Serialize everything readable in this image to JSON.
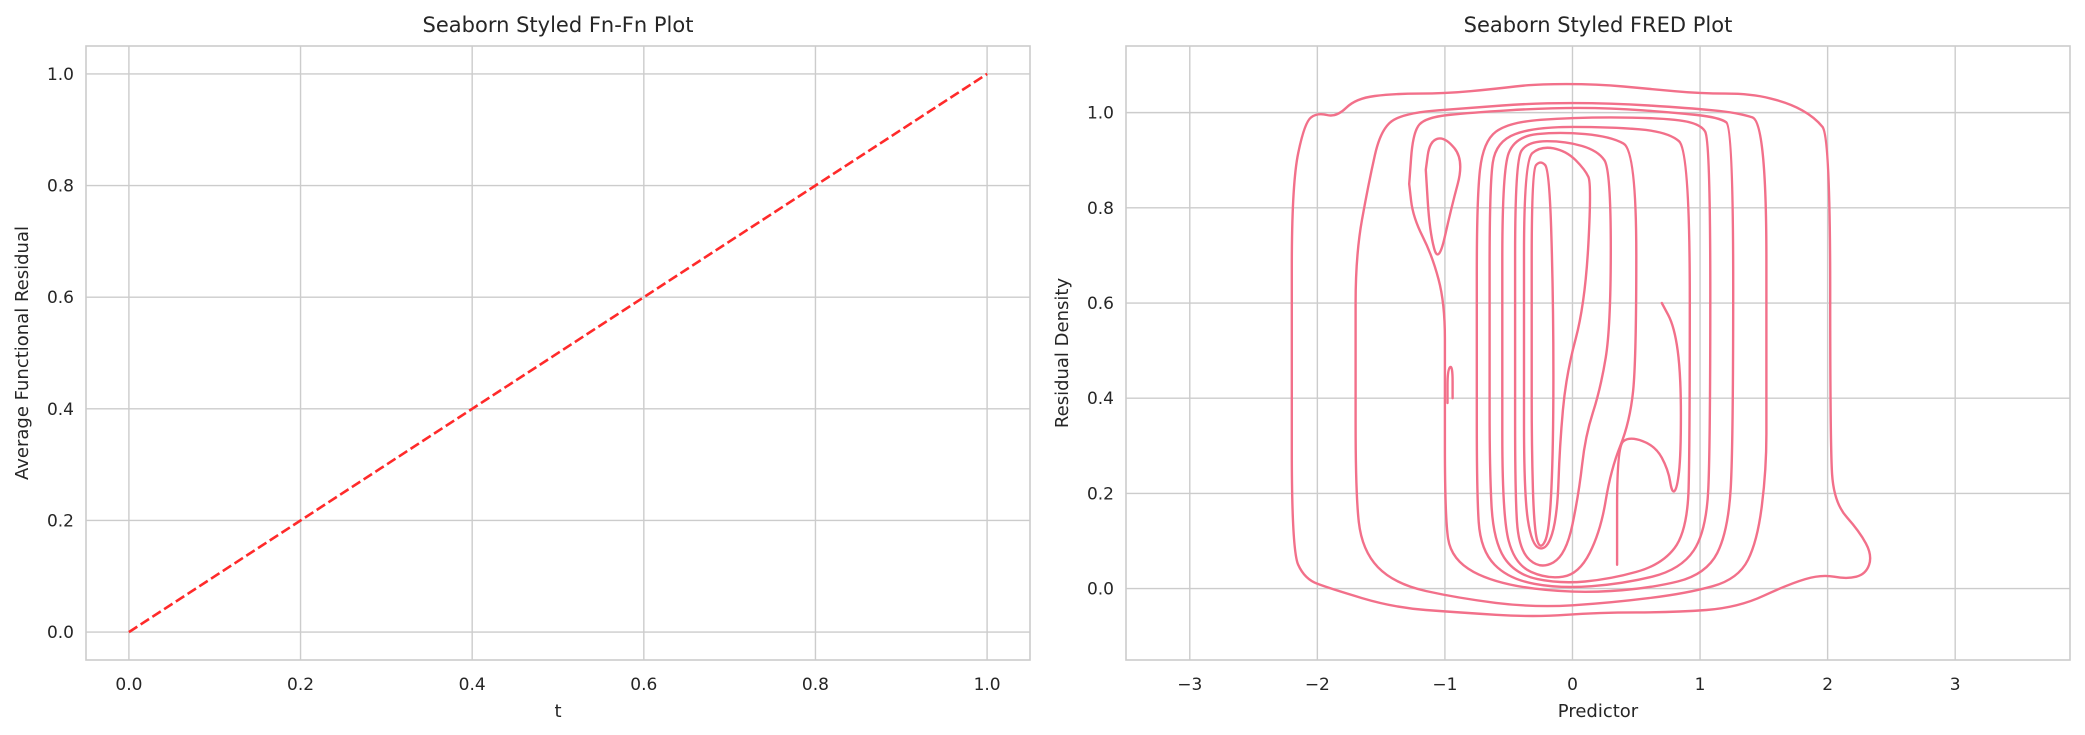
{
  "chart_data": [
    {
      "type": "line",
      "title": "Seaborn Styled Fn-Fn Plot",
      "xlabel": "t",
      "ylabel": "Average Functional Residual",
      "xlim": [
        -0.05,
        1.05
      ],
      "ylim": [
        -0.05,
        1.05
      ],
      "xticks": [
        0.0,
        0.2,
        0.4,
        0.6,
        0.8,
        1.0
      ],
      "yticks": [
        0.0,
        0.2,
        0.4,
        0.6,
        0.8,
        1.0
      ],
      "xtick_labels": [
        "0.0",
        "0.2",
        "0.4",
        "0.6",
        "0.8",
        "1.0"
      ],
      "ytick_labels": [
        "0.0",
        "0.2",
        "0.4",
        "0.6",
        "0.8",
        "1.0"
      ],
      "grid": true,
      "series": [
        {
          "x": [
            0.0,
            0.2,
            0.4,
            0.6,
            0.8,
            1.0
          ],
          "y": [
            0.0,
            0.2,
            0.4,
            0.6,
            0.8,
            1.0
          ],
          "color": "#ff2a2a",
          "style": "dashed"
        }
      ]
    },
    {
      "type": "contour",
      "title": "Seaborn Styled FRED Plot",
      "xlabel": "Predictor",
      "ylabel": "Residual Density",
      "xlim": [
        -3.5,
        3.9
      ],
      "ylim": [
        -0.15,
        1.14
      ],
      "xticks": [
        -3,
        -2,
        -1,
        0,
        1,
        2,
        3
      ],
      "yticks": [
        0.0,
        0.2,
        0.4,
        0.6,
        0.8,
        1.0
      ],
      "xtick_labels": [
        "−3",
        "−2",
        "−1",
        "0",
        "1",
        "2",
        "3"
      ],
      "ytick_labels": [
        "0.0",
        "0.2",
        "0.4",
        "0.6",
        "0.8",
        "1.0"
      ],
      "grid": true,
      "color": "#f2708a",
      "contours": [
        [
          [
            -2.2,
            0.5
          ],
          [
            -2.2,
            0.85
          ],
          [
            -2.1,
            0.98
          ],
          [
            -2.0,
            1.0
          ],
          [
            -1.85,
            0.99
          ],
          [
            -1.7,
            1.03
          ],
          [
            -1.4,
            1.04
          ],
          [
            -1.0,
            1.04
          ],
          [
            -0.6,
            1.05
          ],
          [
            -0.3,
            1.06
          ],
          [
            0.2,
            1.06
          ],
          [
            0.6,
            1.05
          ],
          [
            1.0,
            1.04
          ],
          [
            1.4,
            1.04
          ],
          [
            1.7,
            1.02
          ],
          [
            1.9,
            0.99
          ],
          [
            2.02,
            0.95
          ],
          [
            2.02,
            0.3
          ],
          [
            2.05,
            0.18
          ],
          [
            2.25,
            0.12
          ],
          [
            2.35,
            0.07
          ],
          [
            2.3,
            0.03
          ],
          [
            2.15,
            0.02
          ],
          [
            1.95,
            0.03
          ],
          [
            1.7,
            0.01
          ],
          [
            1.3,
            -0.04
          ],
          [
            0.8,
            -0.05
          ],
          [
            0.2,
            -0.05
          ],
          [
            -0.3,
            -0.06
          ],
          [
            -0.9,
            -0.05
          ],
          [
            -1.4,
            -0.04
          ],
          [
            -1.9,
            0.0
          ],
          [
            -2.1,
            0.02
          ],
          [
            -2.2,
            0.08
          ],
          [
            -2.2,
            0.5
          ]
        ],
        [
          [
            -1.7,
            0.5
          ],
          [
            -1.7,
            0.7
          ],
          [
            -1.6,
            0.85
          ],
          [
            -1.5,
            0.97
          ],
          [
            -1.3,
            1.0
          ],
          [
            -0.8,
            1.01
          ],
          [
            -0.3,
            1.02
          ],
          [
            0.3,
            1.02
          ],
          [
            0.9,
            1.01
          ],
          [
            1.3,
            1.0
          ],
          [
            1.52,
            0.98
          ],
          [
            1.52,
            0.4
          ],
          [
            1.52,
            0.25
          ],
          [
            1.45,
            0.1
          ],
          [
            1.3,
            0.02
          ],
          [
            0.9,
            -0.01
          ],
          [
            0.3,
            -0.03
          ],
          [
            -0.3,
            -0.04
          ],
          [
            -0.9,
            -0.02
          ],
          [
            -1.4,
            0.01
          ],
          [
            -1.65,
            0.08
          ],
          [
            -1.7,
            0.2
          ],
          [
            -1.7,
            0.5
          ]
        ],
        [
          [
            -1.28,
            0.85
          ],
          [
            -1.25,
            0.96
          ],
          [
            -1.15,
            0.99
          ],
          [
            -0.8,
            1.0
          ],
          [
            -0.2,
            1.01
          ],
          [
            0.3,
            1.01
          ],
          [
            0.8,
            1.0
          ],
          [
            1.15,
            0.99
          ],
          [
            1.26,
            0.97
          ],
          [
            1.26,
            0.3
          ],
          [
            1.22,
            0.12
          ],
          [
            1.05,
            0.03
          ],
          [
            0.6,
            0.0
          ],
          [
            0.0,
            -0.01
          ],
          [
            -0.6,
            0.01
          ],
          [
            -0.95,
            0.06
          ],
          [
            -1.0,
            0.15
          ],
          [
            -1.0,
            0.45
          ],
          [
            -1.0,
            0.6
          ],
          [
            -1.1,
            0.7
          ],
          [
            -1.25,
            0.78
          ],
          [
            -1.28,
            0.85
          ]
        ],
        [
          [
            -1.15,
            0.88
          ],
          [
            -1.12,
            0.94
          ],
          [
            -1.0,
            0.95
          ],
          [
            -0.85,
            0.9
          ],
          [
            -0.95,
            0.8
          ],
          [
            -1.05,
            0.68
          ],
          [
            -1.12,
            0.75
          ],
          [
            -1.15,
            0.88
          ]
        ],
        [
          [
            -0.75,
            0.5
          ],
          [
            -0.75,
            0.82
          ],
          [
            -0.7,
            0.94
          ],
          [
            -0.5,
            0.98
          ],
          [
            0.0,
            0.99
          ],
          [
            0.6,
            0.99
          ],
          [
            1.0,
            0.98
          ],
          [
            1.08,
            0.94
          ],
          [
            1.08,
            0.3
          ],
          [
            1.05,
            0.12
          ],
          [
            0.85,
            0.04
          ],
          [
            0.4,
            0.01
          ],
          [
            -0.1,
            0.0
          ],
          [
            -0.5,
            0.02
          ],
          [
            -0.72,
            0.08
          ],
          [
            -0.75,
            0.2
          ],
          [
            -0.75,
            0.5
          ]
        ],
        [
          [
            -0.65,
            0.5
          ],
          [
            -0.65,
            0.85
          ],
          [
            -0.6,
            0.94
          ],
          [
            -0.3,
            0.97
          ],
          [
            0.3,
            0.97
          ],
          [
            0.75,
            0.96
          ],
          [
            0.92,
            0.92
          ],
          [
            0.92,
            0.3
          ],
          [
            0.9,
            0.12
          ],
          [
            0.7,
            0.05
          ],
          [
            0.3,
            0.02
          ],
          [
            -0.1,
            0.01
          ],
          [
            -0.45,
            0.03
          ],
          [
            -0.62,
            0.1
          ],
          [
            -0.65,
            0.25
          ],
          [
            -0.65,
            0.5
          ]
        ],
        [
          [
            -0.55,
            0.5
          ],
          [
            -0.55,
            0.88
          ],
          [
            -0.45,
            0.95
          ],
          [
            -0.1,
            0.96
          ],
          [
            0.3,
            0.95
          ],
          [
            0.5,
            0.92
          ],
          [
            0.5,
            0.48
          ],
          [
            0.45,
            0.35
          ],
          [
            0.3,
            0.25
          ],
          [
            0.22,
            0.12
          ],
          [
            0.05,
            0.03
          ],
          [
            -0.2,
            0.02
          ],
          [
            -0.45,
            0.05
          ],
          [
            -0.55,
            0.15
          ],
          [
            -0.55,
            0.5
          ]
        ],
        [
          [
            -0.45,
            0.5
          ],
          [
            -0.45,
            0.9
          ],
          [
            -0.35,
            0.94
          ],
          [
            -0.05,
            0.94
          ],
          [
            0.2,
            0.92
          ],
          [
            0.3,
            0.88
          ],
          [
            0.3,
            0.55
          ],
          [
            0.22,
            0.42
          ],
          [
            0.1,
            0.32
          ],
          [
            0.05,
            0.2
          ],
          [
            -0.05,
            0.07
          ],
          [
            -0.25,
            0.04
          ],
          [
            -0.42,
            0.08
          ],
          [
            -0.45,
            0.2
          ],
          [
            -0.45,
            0.5
          ]
        ],
        [
          [
            -0.38,
            0.5
          ],
          [
            -0.38,
            0.9
          ],
          [
            -0.25,
            0.93
          ],
          [
            -0.05,
            0.92
          ],
          [
            0.1,
            0.88
          ],
          [
            0.15,
            0.85
          ],
          [
            0.1,
            0.6
          ],
          [
            -0.05,
            0.45
          ],
          [
            -0.1,
            0.3
          ],
          [
            -0.12,
            0.15
          ],
          [
            -0.2,
            0.08
          ],
          [
            -0.32,
            0.09
          ],
          [
            -0.38,
            0.2
          ],
          [
            -0.38,
            0.5
          ]
        ],
        [
          [
            -0.32,
            0.5
          ],
          [
            -0.32,
            0.88
          ],
          [
            -0.25,
            0.9
          ],
          [
            -0.18,
            0.88
          ],
          [
            -0.15,
            0.6
          ],
          [
            -0.15,
            0.3
          ],
          [
            -0.18,
            0.12
          ],
          [
            -0.25,
            0.08
          ],
          [
            -0.3,
            0.12
          ],
          [
            -0.32,
            0.3
          ],
          [
            -0.32,
            0.5
          ]
        ],
        [
          [
            0.35,
            0.05
          ],
          [
            0.35,
            0.3
          ],
          [
            0.45,
            0.32
          ],
          [
            0.65,
            0.3
          ],
          [
            0.75,
            0.25
          ],
          [
            0.78,
            0.2
          ],
          [
            0.82,
            0.21
          ],
          [
            0.85,
            0.28
          ],
          [
            0.85,
            0.45
          ],
          [
            0.8,
            0.55
          ],
          [
            0.7,
            0.6
          ]
        ],
        [
          [
            -0.98,
            0.39
          ],
          [
            -0.98,
            0.46
          ],
          [
            -0.94,
            0.47
          ],
          [
            -0.94,
            0.4
          ]
        ]
      ]
    }
  ]
}
